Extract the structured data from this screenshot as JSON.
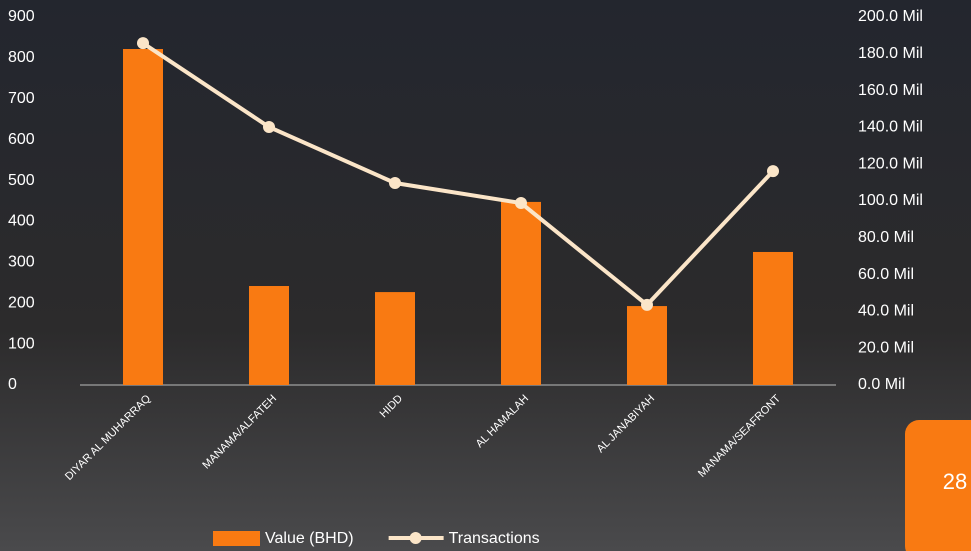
{
  "chart_data": {
    "type": "bar-line",
    "categories": [
      "DIYAR AL MUHARRAQ",
      "MANAMA/ALFATEH",
      "HIDD",
      "AL HAMALAH",
      "AL JANABIYAH",
      "MANAMA/SEAFRONT"
    ],
    "series": [
      {
        "name": "Value (BHD)",
        "type": "bar",
        "color": "#f97a12",
        "axis": "y2",
        "values": [
          182.6,
          53.8,
          50.5,
          99.5,
          42.9,
          72.3
        ]
      },
      {
        "name": "Transactions",
        "type": "line",
        "color": "#fbe5c8",
        "values": [
          836,
          631,
          494,
          445,
          196,
          523
        ]
      }
    ],
    "ylim": [
      0,
      900
    ],
    "yticks": [
      0,
      100,
      200,
      300,
      400,
      500,
      600,
      700,
      800,
      900
    ],
    "y2lim": [
      0,
      200
    ],
    "y2ticks": [
      {
        "value": 0,
        "label": "0.0 Mil"
      },
      {
        "value": 20,
        "label": "20.0 Mil"
      },
      {
        "value": 40,
        "label": "40.0 Mil"
      },
      {
        "value": 60,
        "label": "60.0 Mil"
      },
      {
        "value": 80,
        "label": "80.0 Mil"
      },
      {
        "value": 100,
        "label": "100.0 Mil"
      },
      {
        "value": 120,
        "label": "120.0 Mil"
      },
      {
        "value": 140,
        "label": "140.0 Mil"
      },
      {
        "value": 160,
        "label": "160.0 Mil"
      },
      {
        "value": 180,
        "label": "180.0 Mil"
      },
      {
        "value": 200,
        "label": "200.0 Mil"
      }
    ],
    "legend": "bottom"
  },
  "page_number": "28"
}
